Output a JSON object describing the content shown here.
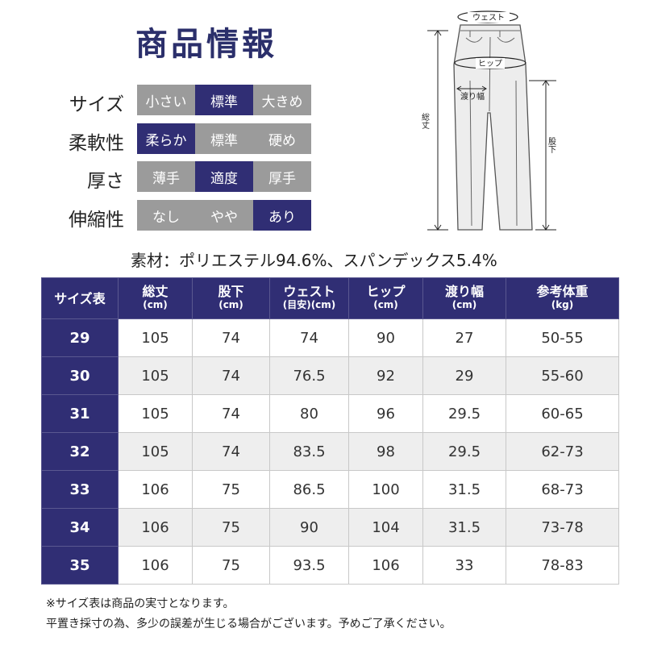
{
  "title": "商品情報",
  "attributes": [
    {
      "label": "サイズ",
      "options": [
        "小さい",
        "標準",
        "大きめ"
      ],
      "selected": 1
    },
    {
      "label": "柔軟性",
      "options": [
        "柔らか",
        "標準",
        "硬め"
      ],
      "selected": 0
    },
    {
      "label": "厚さ",
      "options": [
        "薄手",
        "適度",
        "厚手"
      ],
      "selected": 1
    },
    {
      "label": "伸縮性",
      "options": [
        "なし",
        "やや",
        "あり"
      ],
      "selected": 2
    }
  ],
  "diagram": {
    "waist": "ウェスト",
    "hip": "ヒップ",
    "thigh": "渡り幅",
    "length": "総丈",
    "inseam": "股下"
  },
  "material": "素材：ポリエステル94.6%、スパンデックス5.4%",
  "table": {
    "headers": [
      {
        "main": "サイズ表",
        "unit": ""
      },
      {
        "main": "総丈",
        "unit": "(cm)"
      },
      {
        "main": "股下",
        "unit": "(cm)"
      },
      {
        "main": "ウェスト",
        "unit": "(目安)(cm)"
      },
      {
        "main": "ヒップ",
        "unit": "(cm)"
      },
      {
        "main": "渡り幅",
        "unit": "(cm)"
      },
      {
        "main": "参考体重",
        "unit": "(kg)"
      }
    ],
    "rows": [
      [
        "29",
        "105",
        "74",
        "74",
        "90",
        "27",
        "50-55"
      ],
      [
        "30",
        "105",
        "74",
        "76.5",
        "92",
        "29",
        "55-60"
      ],
      [
        "31",
        "105",
        "74",
        "80",
        "96",
        "29.5",
        "60-65"
      ],
      [
        "32",
        "105",
        "74",
        "83.5",
        "98",
        "29.5",
        "62-73"
      ],
      [
        "33",
        "106",
        "75",
        "86.5",
        "100",
        "31.5",
        "68-73"
      ],
      [
        "34",
        "106",
        "75",
        "90",
        "104",
        "31.5",
        "73-78"
      ],
      [
        "35",
        "106",
        "75",
        "93.5",
        "106",
        "33",
        "78-83"
      ]
    ]
  },
  "notes": [
    "※サイズ表は商品の実寸となります。",
    "平置き採寸の為、多少の誤差が生じる場合がございます。予めご了承ください。"
  ],
  "colors": {
    "accent": "#302e74",
    "inactive": "#9b9b9b"
  }
}
